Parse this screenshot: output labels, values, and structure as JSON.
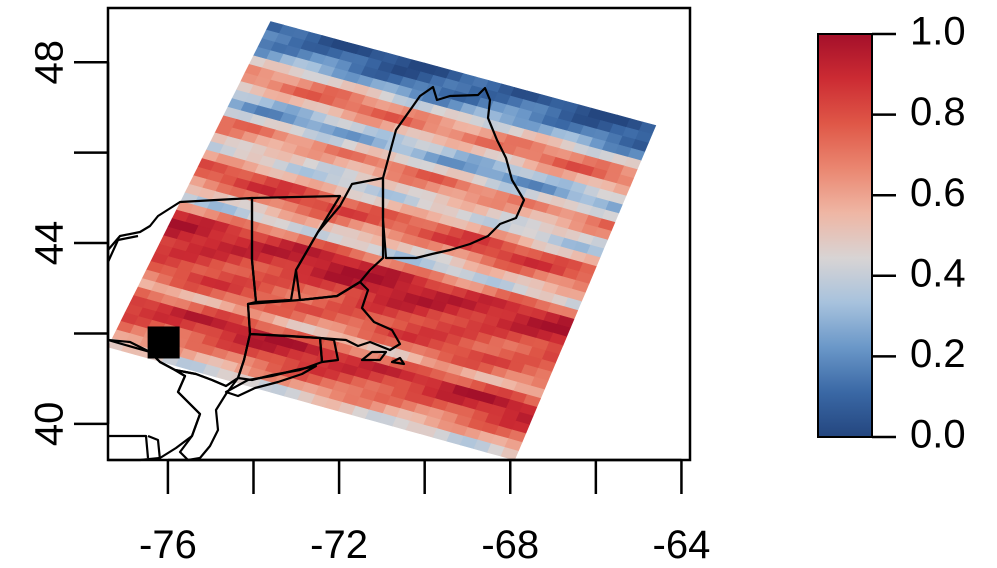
{
  "chart_data": {
    "type": "heatmap",
    "title": "",
    "xlabel": "",
    "ylabel": "",
    "xlim": [
      -77.4,
      -63.8
    ],
    "ylim": [
      39.2,
      49.2
    ],
    "x_ticks": [
      -76,
      -72,
      -68,
      -64
    ],
    "x_tick_labels": [
      "-76",
      "-72",
      "-68",
      "-64"
    ],
    "y_ticks": [
      40,
      44,
      48
    ],
    "y_tick_labels": [
      "40",
      "44",
      "48"
    ],
    "y_tick_minor": [
      42,
      46
    ],
    "x_tick_minor": [
      -74,
      -70,
      -66
    ],
    "grid": false,
    "colorbar": {
      "min": 0.0,
      "max": 1.0,
      "ticks": [
        "0.0",
        "0.2",
        "0.4",
        "0.6",
        "0.8",
        "1.0"
      ],
      "colors": [
        "#24467f",
        "#3a68a5",
        "#6a97c8",
        "#a7c2dd",
        "#d8d4d4",
        "#efb6a4",
        "#ea8670",
        "#df5747",
        "#cc2b33",
        "#a4102a"
      ]
    },
    "domain_corners_lonlat": [
      [
        -73.6,
        48.9
      ],
      [
        -64.6,
        46.6
      ],
      [
        -67.9,
        39.2
      ],
      [
        -77.4,
        41.7
      ]
    ],
    "field_profile_across_domain": [
      0.05,
      0.1,
      0.15,
      0.25,
      0.45,
      0.65,
      0.72,
      0.55,
      0.35,
      0.25,
      0.45,
      0.7,
      0.62,
      0.48,
      0.4,
      0.55,
      0.78,
      0.82,
      0.68,
      0.52,
      0.4,
      0.7,
      0.9,
      0.95,
      0.92,
      0.85,
      0.8,
      0.78,
      0.8,
      0.72,
      0.55,
      0.75,
      0.93,
      0.88,
      0.8,
      0.72,
      0.62,
      0.45
    ],
    "marker": {
      "lon": -76.1,
      "lat": 41.8,
      "shape": "square",
      "color": "#000000"
    },
    "coastline_features": [
      "Maine",
      "New Hampshire",
      "Vermont",
      "Massachusetts",
      "Connecticut",
      "Rhode Island",
      "New York",
      "New Jersey",
      "Pennsylvania",
      "Long Island",
      "Quebec"
    ]
  }
}
